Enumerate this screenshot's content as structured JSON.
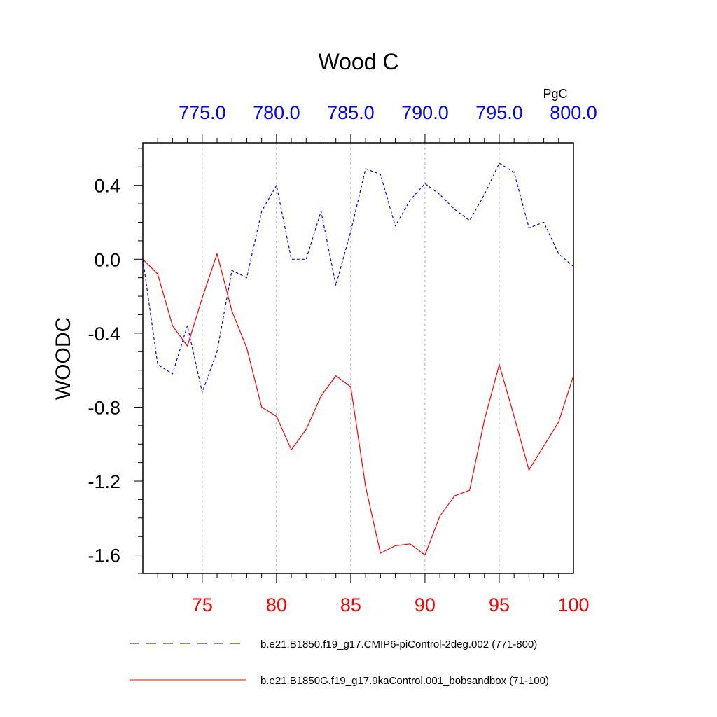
{
  "chart_data": {
    "type": "line",
    "title": "Wood C",
    "ylabel": "WOODC",
    "units_label": "PgC",
    "ylim": [
      -1.7,
      0.63
    ],
    "yticks": [
      0.4,
      0.0,
      -0.4,
      -0.8,
      -1.2,
      -1.6
    ],
    "ytick_labels": [
      "0.4",
      "0.0",
      "-0.4",
      "-0.8",
      "-1.2",
      "-1.6"
    ],
    "x_top": {
      "range": [
        771,
        800
      ],
      "ticks": [
        775,
        780,
        785,
        790,
        795,
        800
      ],
      "tick_labels": [
        "775.0",
        "780.0",
        "785.0",
        "790.0",
        "795.0",
        "800.0"
      ],
      "color": "#0000ff"
    },
    "x_bottom": {
      "range": [
        71,
        100
      ],
      "ticks": [
        75,
        80,
        85,
        90,
        95,
        100
      ],
      "tick_labels": [
        "75",
        "80",
        "85",
        "90",
        "95",
        "100"
      ],
      "color": "#ff0000"
    },
    "grid": "vertical-dashed",
    "series": [
      {
        "name": "b.e21.B1850.f19_g17.CMIP6-piControl-2deg.002 (771-800)",
        "axis": "top",
        "color": "#0000ff",
        "style": "dashed",
        "x": [
          771,
          772,
          773,
          774,
          775,
          776,
          777,
          778,
          779,
          780,
          781,
          782,
          783,
          784,
          785,
          786,
          787,
          788,
          789,
          790,
          791,
          792,
          793,
          794,
          795,
          796,
          797,
          798,
          799,
          800
        ],
        "values": [
          0.0,
          -0.57,
          -0.62,
          -0.36,
          -0.72,
          -0.5,
          -0.06,
          -0.1,
          0.26,
          0.4,
          0.0,
          0.0,
          0.26,
          -0.14,
          0.15,
          0.49,
          0.46,
          0.18,
          0.32,
          0.41,
          0.35,
          0.27,
          0.21,
          0.35,
          0.52,
          0.47,
          0.17,
          0.2,
          0.03,
          -0.04
        ]
      },
      {
        "name": "b.e21.B1850G.f19_g17.9kaControl.001_bobsandbox (71-100)",
        "axis": "bottom",
        "color": "#ff0000",
        "style": "solid",
        "x": [
          71,
          72,
          73,
          74,
          75,
          76,
          77,
          78,
          79,
          80,
          81,
          82,
          83,
          84,
          85,
          86,
          87,
          88,
          89,
          90,
          91,
          92,
          93,
          94,
          95,
          96,
          97,
          98,
          99,
          100
        ],
        "values": [
          0.0,
          -0.08,
          -0.36,
          -0.47,
          -0.21,
          0.03,
          -0.28,
          -0.48,
          -0.8,
          -0.85,
          -1.03,
          -0.92,
          -0.74,
          -0.63,
          -0.69,
          -1.23,
          -1.59,
          -1.55,
          -1.54,
          -1.6,
          -1.39,
          -1.28,
          -1.25,
          -0.87,
          -0.57,
          -0.85,
          -1.14,
          -1.01,
          -0.88,
          -0.63
        ]
      }
    ],
    "legend_position": "bottom"
  }
}
